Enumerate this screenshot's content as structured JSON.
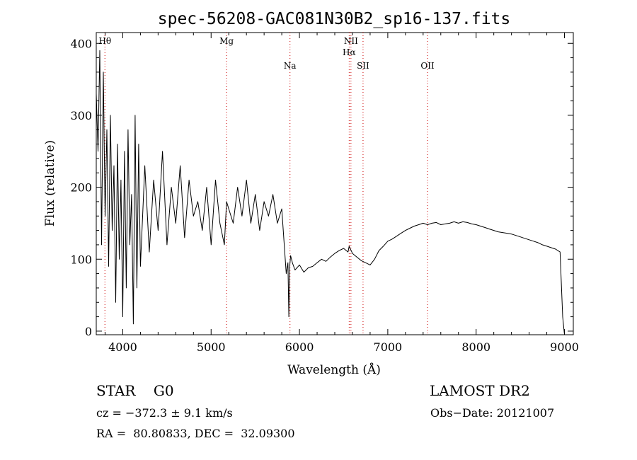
{
  "chart_data": {
    "type": "line",
    "title": "spec-56208-GAC081N30B2_sp16-137.fits",
    "xlabel": "Wavelength (Å)",
    "ylabel": "Flux (relative)",
    "xlim": [
      3700,
      9100
    ],
    "ylim": [
      -5,
      415
    ],
    "x_ticks": [
      "4000",
      "5000",
      "6000",
      "7000",
      "8000",
      "9000"
    ],
    "y_ticks": [
      "0",
      "100",
      "200",
      "300",
      "400"
    ],
    "grid": false,
    "line_color": "#000000",
    "marker_color": "#cc0000",
    "series": [
      {
        "x": [
          3700,
          3720,
          3740,
          3760,
          3780,
          3800,
          3820,
          3840,
          3860,
          3880,
          3900,
          3920,
          3940,
          3960,
          3980,
          4000,
          4020,
          4040,
          4060,
          4080,
          4100,
          4120,
          4140,
          4160,
          4180,
          4200,
          4250,
          4300,
          4350,
          4400,
          4450,
          4500,
          4550,
          4600,
          4650,
          4700,
          4750,
          4800,
          4850,
          4900,
          4950,
          5000,
          5050,
          5100,
          5150,
          5175,
          5200,
          5250,
          5300,
          5350,
          5400,
          5450,
          5500,
          5550,
          5600,
          5650,
          5700,
          5750,
          5800,
          5850,
          5870,
          5880,
          5890,
          5900,
          5920,
          5950,
          6000,
          6050,
          6100,
          6150,
          6200,
          6250,
          6300,
          6350,
          6400,
          6450,
          6500,
          6550,
          6563,
          6600,
          6650,
          6700,
          6750,
          6800,
          6850,
          6900,
          6950,
          7000,
          7050,
          7100,
          7150,
          7200,
          7250,
          7300,
          7350,
          7400,
          7450,
          7500,
          7550,
          7600,
          7650,
          7700,
          7750,
          7800,
          7850,
          7900,
          7950,
          8000,
          8050,
          8100,
          8150,
          8200,
          8250,
          8300,
          8350,
          8400,
          8450,
          8500,
          8550,
          8600,
          8650,
          8700,
          8750,
          8800,
          8850,
          8900,
          8950,
          8980,
          9000
        ],
        "y": [
          330,
          250,
          390,
          120,
          360,
          160,
          280,
          90,
          300,
          140,
          230,
          40,
          260,
          100,
          210,
          20,
          250,
          60,
          280,
          120,
          190,
          10,
          300,
          60,
          260,
          90,
          230,
          110,
          210,
          140,
          250,
          120,
          200,
          150,
          230,
          130,
          210,
          160,
          180,
          140,
          200,
          120,
          210,
          150,
          120,
          180,
          170,
          150,
          200,
          160,
          210,
          150,
          190,
          140,
          180,
          160,
          190,
          150,
          170,
          80,
          95,
          20,
          90,
          105,
          95,
          85,
          92,
          82,
          88,
          90,
          95,
          100,
          97,
          103,
          108,
          112,
          115,
          110,
          118,
          108,
          103,
          98,
          95,
          92,
          100,
          112,
          118,
          125,
          128,
          132,
          136,
          140,
          143,
          146,
          148,
          150,
          148,
          150,
          151,
          148,
          149,
          150,
          152,
          150,
          152,
          151,
          149,
          148,
          146,
          144,
          142,
          140,
          138,
          137,
          136,
          135,
          133,
          131,
          129,
          127,
          125,
          123,
          120,
          118,
          116,
          114,
          110,
          20,
          -5
        ]
      }
    ],
    "markers": [
      {
        "label": "Hθ",
        "x": 3798,
        "row": 0
      },
      {
        "label": "Mg",
        "x": 5175,
        "row": 0
      },
      {
        "label": "Na",
        "x": 5893,
        "row": 2
      },
      {
        "label": "NII",
        "x": 6583,
        "row": 0
      },
      {
        "label": "Hα",
        "x": 6563,
        "row": 1
      },
      {
        "label": "SII",
        "x": 6720,
        "row": 2
      },
      {
        "label": "OII",
        "x": 7450,
        "row": 2
      }
    ]
  },
  "info": {
    "star": "STAR    G0",
    "survey": "LAMOST DR2",
    "cz": "cz = −372.3 ± 9.1 km/s",
    "obs_date": "Obs−Date: 20121007",
    "radec": "RA =  80.80833, DEC =  32.09300"
  }
}
